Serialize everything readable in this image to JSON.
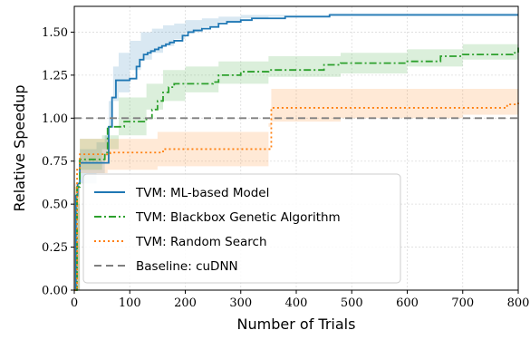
{
  "chart_data": {
    "type": "line",
    "title": "",
    "xlabel": "Number of Trials",
    "ylabel": "Relative Speedup",
    "xlim": [
      0,
      800
    ],
    "ylim": [
      0,
      1.65
    ],
    "xticks": [
      0,
      100,
      200,
      300,
      400,
      500,
      600,
      700,
      800
    ],
    "yticks": [
      0.0,
      0.25,
      0.5,
      0.75,
      1.0,
      1.25,
      1.5
    ],
    "ytick_labels": [
      "0.00",
      "0.25",
      "0.50",
      "0.75",
      "1.00",
      "1.25",
      "1.50"
    ],
    "grid": true,
    "legend_position": "lower-left",
    "series": [
      {
        "name": "TVM: ML-based Model",
        "color": "#1f77b4",
        "style": "solid",
        "x": [
          0,
          3,
          6,
          10,
          30,
          55,
          62,
          68,
          75,
          100,
          112,
          118,
          125,
          132,
          138,
          145,
          152,
          158,
          165,
          172,
          180,
          195,
          205,
          215,
          230,
          245,
          260,
          275,
          300,
          320,
          340,
          380,
          460,
          800
        ],
        "y": [
          0,
          0.55,
          0.62,
          0.74,
          0.74,
          0.74,
          0.95,
          1.12,
          1.22,
          1.23,
          1.3,
          1.34,
          1.37,
          1.38,
          1.39,
          1.4,
          1.41,
          1.42,
          1.43,
          1.44,
          1.45,
          1.48,
          1.5,
          1.51,
          1.52,
          1.53,
          1.55,
          1.56,
          1.57,
          1.58,
          1.58,
          1.59,
          1.6,
          1.6
        ],
        "band": {
          "x": [
            0,
            10,
            40,
            55,
            62,
            70,
            80,
            100,
            120,
            140,
            160,
            180,
            200,
            230,
            260,
            300,
            350,
            460,
            800
          ],
          "lower": [
            0,
            0.5,
            0.62,
            0.68,
            0.78,
            0.95,
            1.1,
            1.15,
            1.28,
            1.34,
            1.38,
            1.42,
            1.46,
            1.5,
            1.53,
            1.56,
            1.58,
            1.59,
            1.6
          ],
          "upper": [
            0,
            0.82,
            0.86,
            0.9,
            1.1,
            1.3,
            1.38,
            1.45,
            1.5,
            1.52,
            1.54,
            1.55,
            1.57,
            1.58,
            1.59,
            1.6,
            1.6,
            1.61,
            1.61
          ]
        }
      },
      {
        "name": "TVM: Blackbox Genetic Algorithm",
        "color": "#2ca02c",
        "style": "dashdot",
        "x": [
          0,
          5,
          10,
          50,
          55,
          60,
          80,
          90,
          130,
          140,
          150,
          160,
          170,
          180,
          250,
          260,
          300,
          350,
          450,
          480,
          600,
          660,
          700,
          790,
          800
        ],
        "y": [
          0,
          0.6,
          0.76,
          0.76,
          0.8,
          0.95,
          0.95,
          0.98,
          1.0,
          1.05,
          1.1,
          1.15,
          1.18,
          1.2,
          1.21,
          1.25,
          1.27,
          1.28,
          1.31,
          1.32,
          1.33,
          1.36,
          1.37,
          1.38,
          1.41
        ],
        "band": {
          "x": [
            0,
            10,
            50,
            80,
            130,
            160,
            200,
            260,
            350,
            480,
            600,
            700,
            800
          ],
          "lower": [
            0,
            0.6,
            0.7,
            0.82,
            0.9,
            1.05,
            1.1,
            1.15,
            1.2,
            1.24,
            1.26,
            1.3,
            1.34
          ],
          "upper": [
            0,
            0.88,
            0.9,
            1.12,
            1.2,
            1.28,
            1.3,
            1.33,
            1.36,
            1.38,
            1.4,
            1.43,
            1.46
          ]
        }
      },
      {
        "name": "TVM: Random Search",
        "color": "#ff7f0e",
        "style": "dotted",
        "x": [
          0,
          5,
          10,
          60,
          65,
          150,
          160,
          350,
          355,
          470,
          480,
          770,
          780,
          800
        ],
        "y": [
          0,
          0.7,
          0.79,
          0.79,
          0.8,
          0.8,
          0.82,
          0.82,
          1.06,
          1.06,
          1.06,
          1.06,
          1.08,
          1.09
        ],
        "band": {
          "x": [
            0,
            10,
            60,
            150,
            160,
            350,
            355,
            480,
            700,
            800
          ],
          "lower": [
            0,
            0.62,
            0.68,
            0.7,
            0.72,
            0.72,
            0.97,
            0.98,
            1.0,
            1.02
          ],
          "upper": [
            0,
            0.88,
            0.88,
            0.92,
            0.92,
            0.95,
            1.17,
            1.17,
            1.17,
            1.17
          ]
        }
      },
      {
        "name": "Baseline: cuDNN",
        "color": "#7f7f7f",
        "style": "dashed",
        "x": [
          0,
          800
        ],
        "y": [
          1.0,
          1.0
        ]
      }
    ]
  }
}
